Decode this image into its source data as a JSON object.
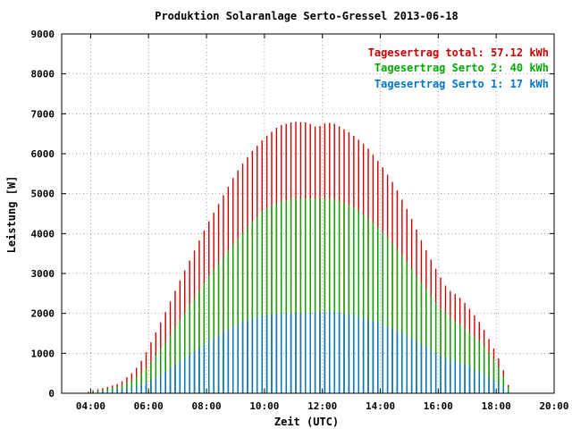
{
  "chart_data": {
    "type": "bar",
    "title": "Produktion Solaranlage Serto-Gressel 2013-06-18",
    "xlabel": "Zeit (UTC)",
    "ylabel": "Leistung [W]",
    "xlim": [
      3.0,
      20.0
    ],
    "ylim": [
      0,
      9000
    ],
    "xticks": [
      {
        "value": 4,
        "label": "04:00"
      },
      {
        "value": 6,
        "label": "06:00"
      },
      {
        "value": 8,
        "label": "08:00"
      },
      {
        "value": 10,
        "label": "10:00"
      },
      {
        "value": 12,
        "label": "12:00"
      },
      {
        "value": 14,
        "label": "14:00"
      },
      {
        "value": 16,
        "label": "16:00"
      },
      {
        "value": 18,
        "label": "18:00"
      },
      {
        "value": 20,
        "label": "20:00"
      }
    ],
    "yticks": [
      0,
      1000,
      2000,
      3000,
      4000,
      5000,
      6000,
      7000,
      8000,
      9000
    ],
    "grid": true,
    "stacked_display": "overlaid",
    "legend": [
      {
        "text": "Tagesertrag total: 57.12 kWh",
        "color": "#cc0000"
      },
      {
        "text": "Tagesertrag Serto 2: 40 kWh",
        "color": "#00aa00"
      },
      {
        "text": "Tagesertrag Serto 1: 17 kWh",
        "color": "#0077cc"
      }
    ],
    "legend_position": "top-right",
    "bar_interval_minutes": 10,
    "series": [
      {
        "color": "#cc0000",
        "profile": [
          [
            3.75,
            0
          ],
          [
            4.0,
            60
          ],
          [
            4.5,
            140
          ],
          [
            5.0,
            250
          ],
          [
            5.5,
            550
          ],
          [
            5.83,
            900
          ],
          [
            6.0,
            1150
          ],
          [
            6.5,
            1900
          ],
          [
            7.0,
            2700
          ],
          [
            7.5,
            3450
          ],
          [
            8.0,
            4200
          ],
          [
            8.5,
            4850
          ],
          [
            9.0,
            5500
          ],
          [
            9.5,
            6000
          ],
          [
            10.0,
            6400
          ],
          [
            10.5,
            6700
          ],
          [
            11.0,
            6800
          ],
          [
            11.5,
            6780
          ],
          [
            11.83,
            6650
          ],
          [
            12.0,
            6750
          ],
          [
            12.33,
            6780
          ],
          [
            12.67,
            6650
          ],
          [
            13.0,
            6500
          ],
          [
            13.5,
            6200
          ],
          [
            14.0,
            5750
          ],
          [
            14.5,
            5200
          ],
          [
            15.0,
            4500
          ],
          [
            15.5,
            3700
          ],
          [
            16.0,
            3000
          ],
          [
            16.33,
            2600
          ],
          [
            16.67,
            2450
          ],
          [
            17.0,
            2200
          ],
          [
            17.5,
            1700
          ],
          [
            17.83,
            1250
          ],
          [
            18.0,
            1000
          ],
          [
            18.17,
            750
          ],
          [
            18.33,
            400
          ],
          [
            18.42,
            200
          ],
          [
            18.5,
            50
          ],
          [
            18.6,
            0
          ]
        ]
      },
      {
        "color": "#00aa00",
        "profile": [
          [
            3.75,
            0
          ],
          [
            4.0,
            40
          ],
          [
            4.5,
            100
          ],
          [
            5.0,
            180
          ],
          [
            5.5,
            350
          ],
          [
            5.83,
            550
          ],
          [
            6.0,
            700
          ],
          [
            6.5,
            1200
          ],
          [
            7.0,
            1750
          ],
          [
            7.5,
            2300
          ],
          [
            8.0,
            2850
          ],
          [
            8.5,
            3350
          ],
          [
            9.0,
            3800
          ],
          [
            9.5,
            4250
          ],
          [
            10.0,
            4600
          ],
          [
            10.5,
            4800
          ],
          [
            11.0,
            4880
          ],
          [
            11.5,
            4880
          ],
          [
            12.0,
            4880
          ],
          [
            12.33,
            4870
          ],
          [
            12.67,
            4800
          ],
          [
            13.0,
            4700
          ],
          [
            13.5,
            4450
          ],
          [
            14.0,
            4100
          ],
          [
            14.5,
            3700
          ],
          [
            15.0,
            3200
          ],
          [
            15.5,
            2700
          ],
          [
            16.0,
            2200
          ],
          [
            16.5,
            1850
          ],
          [
            17.0,
            1600
          ],
          [
            17.5,
            1250
          ],
          [
            17.83,
            950
          ],
          [
            18.0,
            750
          ],
          [
            18.17,
            550
          ],
          [
            18.33,
            300
          ],
          [
            18.42,
            150
          ],
          [
            18.5,
            40
          ],
          [
            18.6,
            0
          ]
        ]
      },
      {
        "color": "#0077cc",
        "profile": [
          [
            3.75,
            0
          ],
          [
            4.0,
            20
          ],
          [
            4.5,
            50
          ],
          [
            5.0,
            90
          ],
          [
            5.5,
            160
          ],
          [
            5.83,
            230
          ],
          [
            6.0,
            300
          ],
          [
            6.5,
            500
          ],
          [
            7.0,
            750
          ],
          [
            7.5,
            1000
          ],
          [
            8.0,
            1250
          ],
          [
            8.5,
            1500
          ],
          [
            9.0,
            1700
          ],
          [
            9.5,
            1850
          ],
          [
            10.0,
            1950
          ],
          [
            10.5,
            2000
          ],
          [
            11.0,
            2000
          ],
          [
            11.5,
            2000
          ],
          [
            12.0,
            2030
          ],
          [
            12.33,
            2050
          ],
          [
            12.67,
            2000
          ],
          [
            13.0,
            1950
          ],
          [
            13.5,
            1870
          ],
          [
            14.0,
            1750
          ],
          [
            14.5,
            1600
          ],
          [
            15.0,
            1400
          ],
          [
            15.5,
            1200
          ],
          [
            16.0,
            950
          ],
          [
            16.5,
            820
          ],
          [
            17.0,
            700
          ],
          [
            17.5,
            500
          ],
          [
            17.83,
            380
          ],
          [
            18.0,
            300
          ],
          [
            18.17,
            220
          ],
          [
            18.33,
            120
          ],
          [
            18.42,
            60
          ],
          [
            18.5,
            20
          ],
          [
            18.6,
            0
          ]
        ]
      }
    ]
  }
}
